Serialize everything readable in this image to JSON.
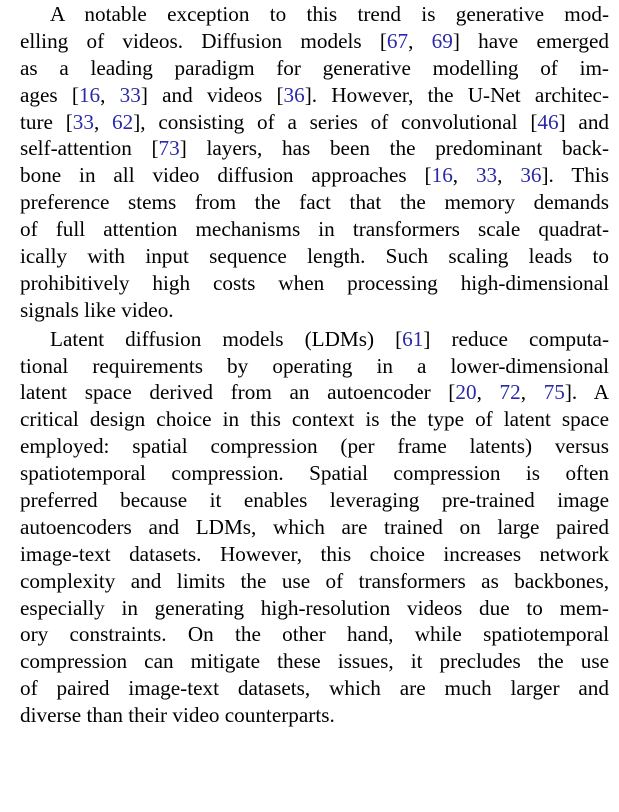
{
  "paragraphs": [
    {
      "lines": [
        [
          {
            "t": "A notable exception to this trend is generative mod-"
          }
        ],
        [
          {
            "t": "elling of videos. Diffusion models ["
          },
          {
            "t": "67",
            "c": 1
          },
          {
            "t": ", "
          },
          {
            "t": "69",
            "c": 1
          },
          {
            "t": "] have emerged"
          }
        ],
        [
          {
            "t": "as a leading paradigm for generative modelling of im-"
          }
        ],
        [
          {
            "t": "ages ["
          },
          {
            "t": "16",
            "c": 1
          },
          {
            "t": ", "
          },
          {
            "t": "33",
            "c": 1
          },
          {
            "t": "] and videos ["
          },
          {
            "t": "36",
            "c": 1
          },
          {
            "t": "]. However, the U-Net architec-"
          }
        ],
        [
          {
            "t": "ture ["
          },
          {
            "t": "33",
            "c": 1
          },
          {
            "t": ", "
          },
          {
            "t": "62",
            "c": 1
          },
          {
            "t": "], consisting of a series of convolutional ["
          },
          {
            "t": "46",
            "c": 1
          },
          {
            "t": "] and"
          }
        ],
        [
          {
            "t": "self-attention ["
          },
          {
            "t": "73",
            "c": 1
          },
          {
            "t": "] layers, has been the predominant back-"
          }
        ],
        [
          {
            "t": "bone in all video diffusion approaches ["
          },
          {
            "t": "16",
            "c": 1
          },
          {
            "t": ", "
          },
          {
            "t": "33",
            "c": 1
          },
          {
            "t": ", "
          },
          {
            "t": "36",
            "c": 1
          },
          {
            "t": "]. This"
          }
        ],
        [
          {
            "t": "preference stems from the fact that the memory demands"
          }
        ],
        [
          {
            "t": "of full attention mechanisms in transformers scale quadrat-"
          }
        ],
        [
          {
            "t": "ically with input sequence length. Such scaling leads to"
          }
        ],
        [
          {
            "t": "prohibitively high costs when processing high-dimensional"
          }
        ],
        [
          {
            "t": "signals like video."
          }
        ]
      ]
    },
    {
      "lines": [
        [
          {
            "t": "Latent diffusion models (LDMs) ["
          },
          {
            "t": "61",
            "c": 1
          },
          {
            "t": "] reduce computa-"
          }
        ],
        [
          {
            "t": "tional requirements by operating in a lower-dimensional"
          }
        ],
        [
          {
            "t": "latent space derived from an autoencoder ["
          },
          {
            "t": "20",
            "c": 1
          },
          {
            "t": ", "
          },
          {
            "t": "72",
            "c": 1
          },
          {
            "t": ", "
          },
          {
            "t": "75",
            "c": 1
          },
          {
            "t": "]. A"
          }
        ],
        [
          {
            "t": "critical design choice in this context is the type of latent space"
          }
        ],
        [
          {
            "t": "employed: spatial compression (per frame latents) versus"
          }
        ],
        [
          {
            "t": "spatiotemporal compression. Spatial compression is often"
          }
        ],
        [
          {
            "t": "preferred because it enables leveraging pre-trained image"
          }
        ],
        [
          {
            "t": "autoencoders and LDMs, which are trained on large paired"
          }
        ],
        [
          {
            "t": "image-text datasets. However, this choice increases network"
          }
        ],
        [
          {
            "t": "complexity and limits the use of transformers as backbones,"
          }
        ],
        [
          {
            "t": "especially in generating high-resolution videos due to mem-"
          }
        ],
        [
          {
            "t": "ory constraints. On the other hand, while spatiotemporal"
          }
        ],
        [
          {
            "t": "compression can mitigate these issues, it precludes the use"
          }
        ],
        [
          {
            "t": "of paired image-text datasets, which are much larger and"
          }
        ],
        [
          {
            "t": "diverse than their video counterparts."
          }
        ]
      ]
    }
  ],
  "colors": {
    "text": "#000000",
    "citation_link": "#2a2aa8"
  }
}
